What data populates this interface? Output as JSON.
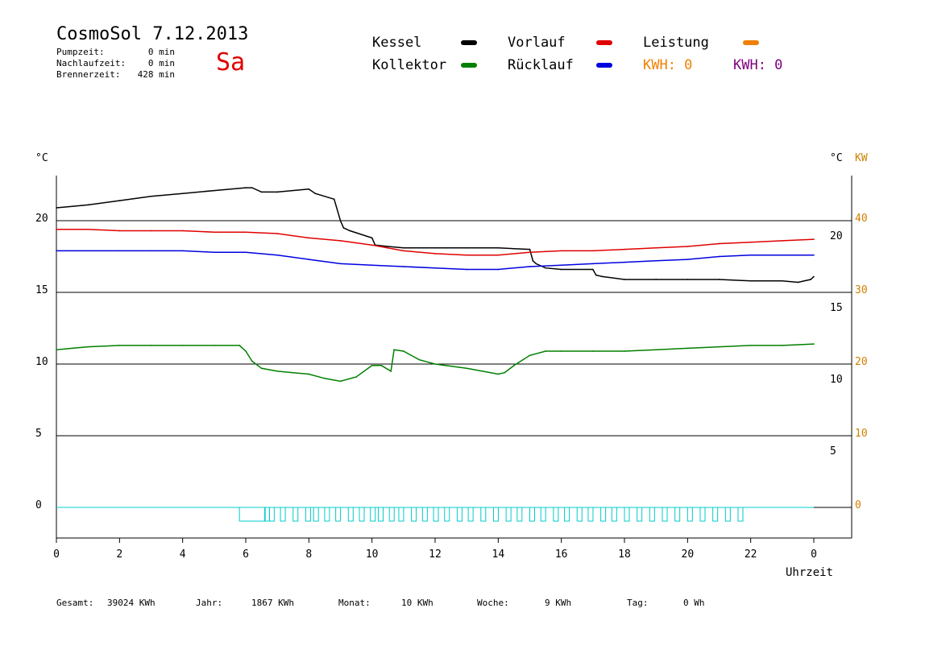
{
  "header": {
    "title": "CosmoSol 7.12.2013",
    "weekday": "Sa",
    "pump_label": "Pumpzeit:",
    "pump_value": "0 min",
    "overrun_label": "Nachlaufzeit:",
    "overrun_value": "0 min",
    "burner_label": "Brennerzeit:",
    "burner_value": "428 min"
  },
  "legend": {
    "kessel": "Kessel",
    "kollektor": "Kollektor",
    "vorlauf": "Vorlauf",
    "ruecklauf": "Rücklauf",
    "leistung": "Leistung",
    "kwh1": "KWH: 0",
    "kwh2": "KWH: 0"
  },
  "colors": {
    "kessel": "#000000",
    "kollektor": "#008000",
    "vorlauf": "#e00000",
    "ruecklauf": "#0000e0",
    "leistung": "#f08000",
    "kwh1": "#f08000",
    "kwh2": "#800080",
    "pump": "#00cccc",
    "kw_axis": "#d08000"
  },
  "footer": {
    "gesamt_label": "Gesamt:",
    "gesamt_value": "39024 KWh",
    "jahr_label": "Jahr:",
    "jahr_value": "1867 KWh",
    "monat_label": "Monat:",
    "monat_value": "10 KWh",
    "woche_label": "Woche:",
    "woche_value": "9 KWh",
    "tag_label": "Tag:",
    "tag_value": "0 Wh"
  },
  "chart_data": {
    "type": "line",
    "xlabel": "Uhrzeit",
    "ylabel_left": "°C",
    "ylabel_right_temp": "°C",
    "ylabel_right_power": "KW",
    "x_ticks": [
      "0",
      "2",
      "4",
      "6",
      "8",
      "10",
      "12",
      "14",
      "16",
      "18",
      "20",
      "22",
      "0"
    ],
    "y_ticks_left": [
      "0",
      "5",
      "10",
      "15",
      "20"
    ],
    "y_ticks_right_temp": [
      "5",
      "10",
      "15",
      "20"
    ],
    "y_ticks_right_power": [
      "0",
      "10",
      "20",
      "30",
      "40"
    ],
    "xlim": [
      0,
      24
    ],
    "ylim": [
      -2,
      24.5
    ],
    "grid": "horizontal",
    "series": [
      {
        "name": "Kessel",
        "key": "kessel",
        "x": [
          0,
          0.5,
          1,
          2,
          3,
          4,
          5,
          6,
          6.2,
          6.5,
          7,
          8,
          8.2,
          8.8,
          9.0,
          9.1,
          9.3,
          10,
          10.1,
          10.5,
          11,
          12,
          13,
          14,
          15,
          15.1,
          15.2,
          15.5,
          16,
          17,
          17.1,
          17.3,
          18,
          19,
          20,
          21,
          22,
          23,
          23.5,
          23.9,
          24
        ],
        "y": [
          20.9,
          21.0,
          21.1,
          21.4,
          21.7,
          21.9,
          22.1,
          22.3,
          22.3,
          22.0,
          22.0,
          22.2,
          21.9,
          21.5,
          20.0,
          19.5,
          19.3,
          18.8,
          18.3,
          18.2,
          18.1,
          18.1,
          18.1,
          18.1,
          18.0,
          17.2,
          17.0,
          16.7,
          16.6,
          16.6,
          16.2,
          16.1,
          15.9,
          15.9,
          15.9,
          15.9,
          15.8,
          15.8,
          15.7,
          15.9,
          16.1
        ]
      },
      {
        "name": "Vorlauf",
        "key": "vorlauf",
        "x": [
          0,
          1,
          2,
          3,
          4,
          5,
          6,
          7,
          8,
          9,
          10,
          11,
          12,
          13,
          14,
          15,
          16,
          17,
          18,
          19,
          20,
          21,
          22,
          23,
          24
        ],
        "y": [
          19.4,
          19.4,
          19.3,
          19.3,
          19.3,
          19.2,
          19.2,
          19.1,
          18.8,
          18.6,
          18.3,
          17.9,
          17.7,
          17.6,
          17.6,
          17.8,
          17.9,
          17.9,
          18.0,
          18.1,
          18.2,
          18.4,
          18.5,
          18.6,
          18.7
        ]
      },
      {
        "name": "Rücklauf",
        "key": "ruecklauf",
        "x": [
          0,
          1,
          2,
          3,
          4,
          5,
          6,
          7,
          8,
          9,
          10,
          11,
          12,
          13,
          14,
          15,
          16,
          17,
          18,
          19,
          20,
          21,
          22,
          23,
          24
        ],
        "y": [
          17.9,
          17.9,
          17.9,
          17.9,
          17.9,
          17.8,
          17.8,
          17.6,
          17.3,
          17.0,
          16.9,
          16.8,
          16.7,
          16.6,
          16.6,
          16.8,
          16.9,
          17.0,
          17.1,
          17.2,
          17.3,
          17.5,
          17.6,
          17.6,
          17.6
        ]
      },
      {
        "name": "Kollektor",
        "key": "kollektor",
        "x": [
          0,
          0.5,
          1,
          2,
          3,
          4,
          5,
          5.8,
          6.0,
          6.2,
          6.5,
          7,
          7.5,
          8,
          8.5,
          9,
          9.5,
          10,
          10.3,
          10.6,
          10.7,
          11,
          11.5,
          12,
          13,
          14,
          14.2,
          14.5,
          15,
          15.5,
          16,
          17,
          18,
          19,
          20,
          21,
          22,
          23,
          24
        ],
        "y": [
          11.0,
          11.1,
          11.2,
          11.3,
          11.3,
          11.3,
          11.3,
          11.3,
          10.9,
          10.2,
          9.7,
          9.5,
          9.4,
          9.3,
          9.0,
          8.8,
          9.1,
          9.9,
          9.9,
          9.5,
          11.0,
          10.9,
          10.3,
          10.0,
          9.7,
          9.3,
          9.4,
          9.9,
          10.6,
          10.9,
          10.9,
          10.9,
          10.9,
          11.0,
          11.1,
          11.2,
          11.3,
          11.3,
          11.4
        ]
      }
    ],
    "pump_blocks_hours": [
      5.8,
      6.6,
      6.75,
      7.1,
      7.5,
      7.9,
      8.15,
      8.5,
      8.85,
      9.25,
      9.6,
      9.95,
      10.2,
      10.55,
      10.85,
      11.25,
      11.6,
      11.95,
      12.3,
      12.7,
      13.05,
      13.45,
      13.85,
      14.25,
      14.6,
      15.0,
      15.35,
      15.75,
      16.1,
      16.5,
      16.85,
      17.25,
      17.6,
      18.0,
      18.4,
      18.8,
      19.2,
      19.6,
      20.0,
      20.4,
      20.8,
      21.2,
      21.6
    ],
    "pump_level": 0
  }
}
